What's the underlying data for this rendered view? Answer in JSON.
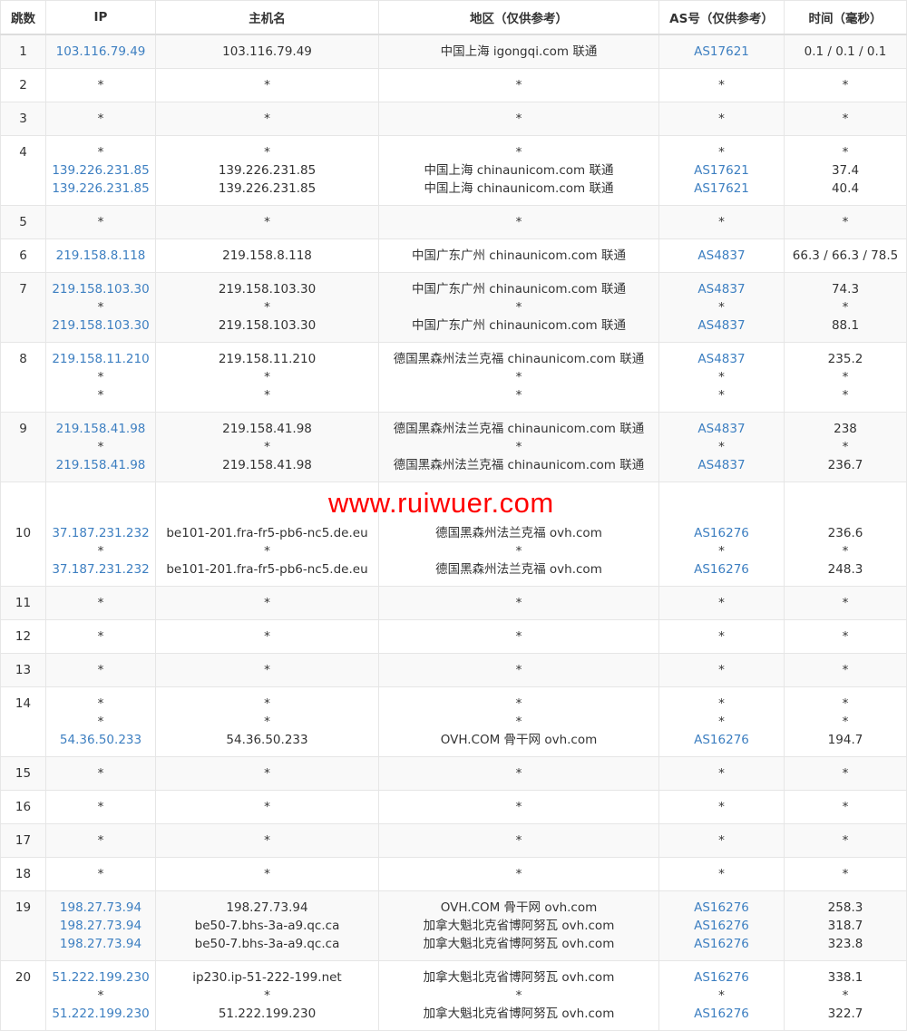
{
  "headers": [
    "跳数",
    "IP",
    "主机名",
    "地区（仅供参考）",
    "AS号（仅供参考）",
    "时间（毫秒）"
  ],
  "watermark": "www.ruiwuer.com",
  "link_color": "#3d7fc1",
  "rows": [
    {
      "hop": "1",
      "ip": [
        "103.116.79.49"
      ],
      "host": [
        "103.116.79.49"
      ],
      "region": [
        "中国上海 igongqi.com 联通"
      ],
      "as": [
        "AS17621"
      ],
      "time": [
        "0.1 / 0.1 / 0.1"
      ]
    },
    {
      "hop": "2",
      "ip": [
        "*"
      ],
      "host": [
        "*"
      ],
      "region": [
        "*"
      ],
      "as": [
        "*"
      ],
      "time": [
        "*"
      ]
    },
    {
      "hop": "3",
      "ip": [
        "*"
      ],
      "host": [
        "*"
      ],
      "region": [
        "*"
      ],
      "as": [
        "*"
      ],
      "time": [
        "*"
      ]
    },
    {
      "hop": "4",
      "ip": [
        "*",
        "139.226.231.85",
        "139.226.231.85"
      ],
      "host": [
        "*",
        "139.226.231.85",
        "139.226.231.85"
      ],
      "region": [
        "*",
        "中国上海 chinaunicom.com 联通",
        "中国上海 chinaunicom.com 联通"
      ],
      "as": [
        "*",
        "AS17621",
        "AS17621"
      ],
      "time": [
        "*",
        "37.4",
        "40.4"
      ]
    },
    {
      "hop": "5",
      "ip": [
        "*"
      ],
      "host": [
        "*"
      ],
      "region": [
        "*"
      ],
      "as": [
        "*"
      ],
      "time": [
        "*"
      ]
    },
    {
      "hop": "6",
      "ip": [
        "219.158.8.118"
      ],
      "host": [
        "219.158.8.118"
      ],
      "region": [
        "中国广东广州 chinaunicom.com 联通"
      ],
      "as": [
        "AS4837"
      ],
      "time": [
        "66.3 / 66.3 / 78.5"
      ]
    },
    {
      "hop": "7",
      "ip": [
        "219.158.103.30",
        "*",
        "219.158.103.30"
      ],
      "host": [
        "219.158.103.30",
        "*",
        "219.158.103.30"
      ],
      "region": [
        "中国广东广州 chinaunicom.com 联通",
        "*",
        "中国广东广州 chinaunicom.com 联通"
      ],
      "as": [
        "AS4837",
        "*",
        "AS4837"
      ],
      "time": [
        "74.3",
        "*",
        "88.1"
      ]
    },
    {
      "hop": "8",
      "ip": [
        "219.158.11.210",
        "*",
        "*"
      ],
      "host": [
        "219.158.11.210",
        "*",
        "*"
      ],
      "region": [
        "德国黑森州法兰克福 chinaunicom.com 联通",
        "*",
        "*"
      ],
      "as": [
        "AS4837",
        "*",
        "*"
      ],
      "time": [
        "235.2",
        "*",
        "*"
      ]
    },
    {
      "hop": "9",
      "ip": [
        "219.158.41.98",
        "*",
        "219.158.41.98"
      ],
      "host": [
        "219.158.41.98",
        "*",
        "219.158.41.98"
      ],
      "region": [
        "德国黑森州法兰克福 chinaunicom.com 联通",
        "*",
        "德国黑森州法兰克福 chinaunicom.com 联通"
      ],
      "as": [
        "AS4837",
        "*",
        "AS4837"
      ],
      "time": [
        "238",
        "*",
        "236.7"
      ]
    },
    {
      "hop": "10",
      "ip": [
        "37.187.231.232",
        "*",
        "37.187.231.232"
      ],
      "host": [
        "be101-201.fra-fr5-pb6-nc5.de.eu",
        "*",
        "be101-201.fra-fr5-pb6-nc5.de.eu"
      ],
      "region": [
        "德国黑森州法兰克福 ovh.com",
        "*",
        "德国黑森州法兰克福 ovh.com"
      ],
      "as": [
        "AS16276",
        "*",
        "AS16276"
      ],
      "time": [
        "236.6",
        "*",
        "248.3"
      ]
    },
    {
      "hop": "11",
      "ip": [
        "*"
      ],
      "host": [
        "*"
      ],
      "region": [
        "*"
      ],
      "as": [
        "*"
      ],
      "time": [
        "*"
      ]
    },
    {
      "hop": "12",
      "ip": [
        "*"
      ],
      "host": [
        "*"
      ],
      "region": [
        "*"
      ],
      "as": [
        "*"
      ],
      "time": [
        "*"
      ]
    },
    {
      "hop": "13",
      "ip": [
        "*"
      ],
      "host": [
        "*"
      ],
      "region": [
        "*"
      ],
      "as": [
        "*"
      ],
      "time": [
        "*"
      ]
    },
    {
      "hop": "14",
      "ip": [
        "*",
        "*",
        "54.36.50.233"
      ],
      "host": [
        "*",
        "*",
        "54.36.50.233"
      ],
      "region": [
        "*",
        "*",
        "OVH.COM 骨干网 ovh.com"
      ],
      "as": [
        "*",
        "*",
        "AS16276"
      ],
      "time": [
        "*",
        "*",
        "194.7"
      ]
    },
    {
      "hop": "15",
      "ip": [
        "*"
      ],
      "host": [
        "*"
      ],
      "region": [
        "*"
      ],
      "as": [
        "*"
      ],
      "time": [
        "*"
      ]
    },
    {
      "hop": "16",
      "ip": [
        "*"
      ],
      "host": [
        "*"
      ],
      "region": [
        "*"
      ],
      "as": [
        "*"
      ],
      "time": [
        "*"
      ]
    },
    {
      "hop": "17",
      "ip": [
        "*"
      ],
      "host": [
        "*"
      ],
      "region": [
        "*"
      ],
      "as": [
        "*"
      ],
      "time": [
        "*"
      ]
    },
    {
      "hop": "18",
      "ip": [
        "*"
      ],
      "host": [
        "*"
      ],
      "region": [
        "*"
      ],
      "as": [
        "*"
      ],
      "time": [
        "*"
      ]
    },
    {
      "hop": "19",
      "ip": [
        "198.27.73.94",
        "198.27.73.94",
        "198.27.73.94"
      ],
      "host": [
        "198.27.73.94",
        "be50-7.bhs-3a-a9.qc.ca",
        "be50-7.bhs-3a-a9.qc.ca"
      ],
      "region": [
        "OVH.COM 骨干网 ovh.com",
        "加拿大魁北克省博阿努瓦 ovh.com",
        "加拿大魁北克省博阿努瓦 ovh.com"
      ],
      "as": [
        "AS16276",
        "AS16276",
        "AS16276"
      ],
      "time": [
        "258.3",
        "318.7",
        "323.8"
      ]
    },
    {
      "hop": "20",
      "ip": [
        "51.222.199.230",
        "*",
        "51.222.199.230"
      ],
      "host": [
        "ip230.ip-51-222-199.net",
        "*",
        "51.222.199.230"
      ],
      "region": [
        "加拿大魁北克省博阿努瓦 ovh.com",
        "*",
        "加拿大魁北克省博阿努瓦 ovh.com"
      ],
      "as": [
        "AS16276",
        "*",
        "AS16276"
      ],
      "time": [
        "338.1",
        "*",
        "322.7"
      ]
    }
  ]
}
